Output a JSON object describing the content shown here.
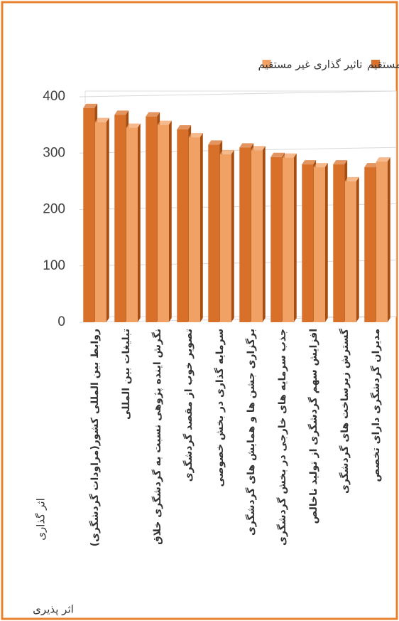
{
  "chart_data": {
    "type": "bar",
    "series": [
      {
        "name": "تاثیر گذاری مستقیم",
        "color": "#d9702a",
        "values": [
          380,
          368,
          365,
          342,
          315,
          310,
          293,
          280,
          280,
          275
        ]
      },
      {
        "name": "تاثیر گذاری غیر مستقیم",
        "color": "#f2a164",
        "values": [
          355,
          345,
          350,
          328,
          298,
          305,
          292,
          275,
          250,
          285
        ]
      }
    ],
    "categories": [
      "روابط بین المللی کشور(مراودات گردشگری)",
      "تبلیغات بین المللی",
      "نگرش اینده پژوهی نسبت به گردشگری خلاق",
      "تصویر خوب از مقصد گردشگری",
      "سرمایه گذاری در بخش خصوصی",
      "برگزاری جشن ها و همایش های گردشگری",
      "جذب سرمایه های خارجی در بخش گردشگری",
      "افزایش سهم گردشگری از تولید ناخالص",
      "گسترش زیرساخت های گردشگری",
      "مدیران گردشگری دارای تخصص"
    ],
    "ylim": [
      0,
      400
    ],
    "yticks": [
      0,
      100,
      200,
      300,
      400
    ],
    "grid": true,
    "y_label": "اثر گذاری",
    "x_label": "اثر پذیری"
  }
}
